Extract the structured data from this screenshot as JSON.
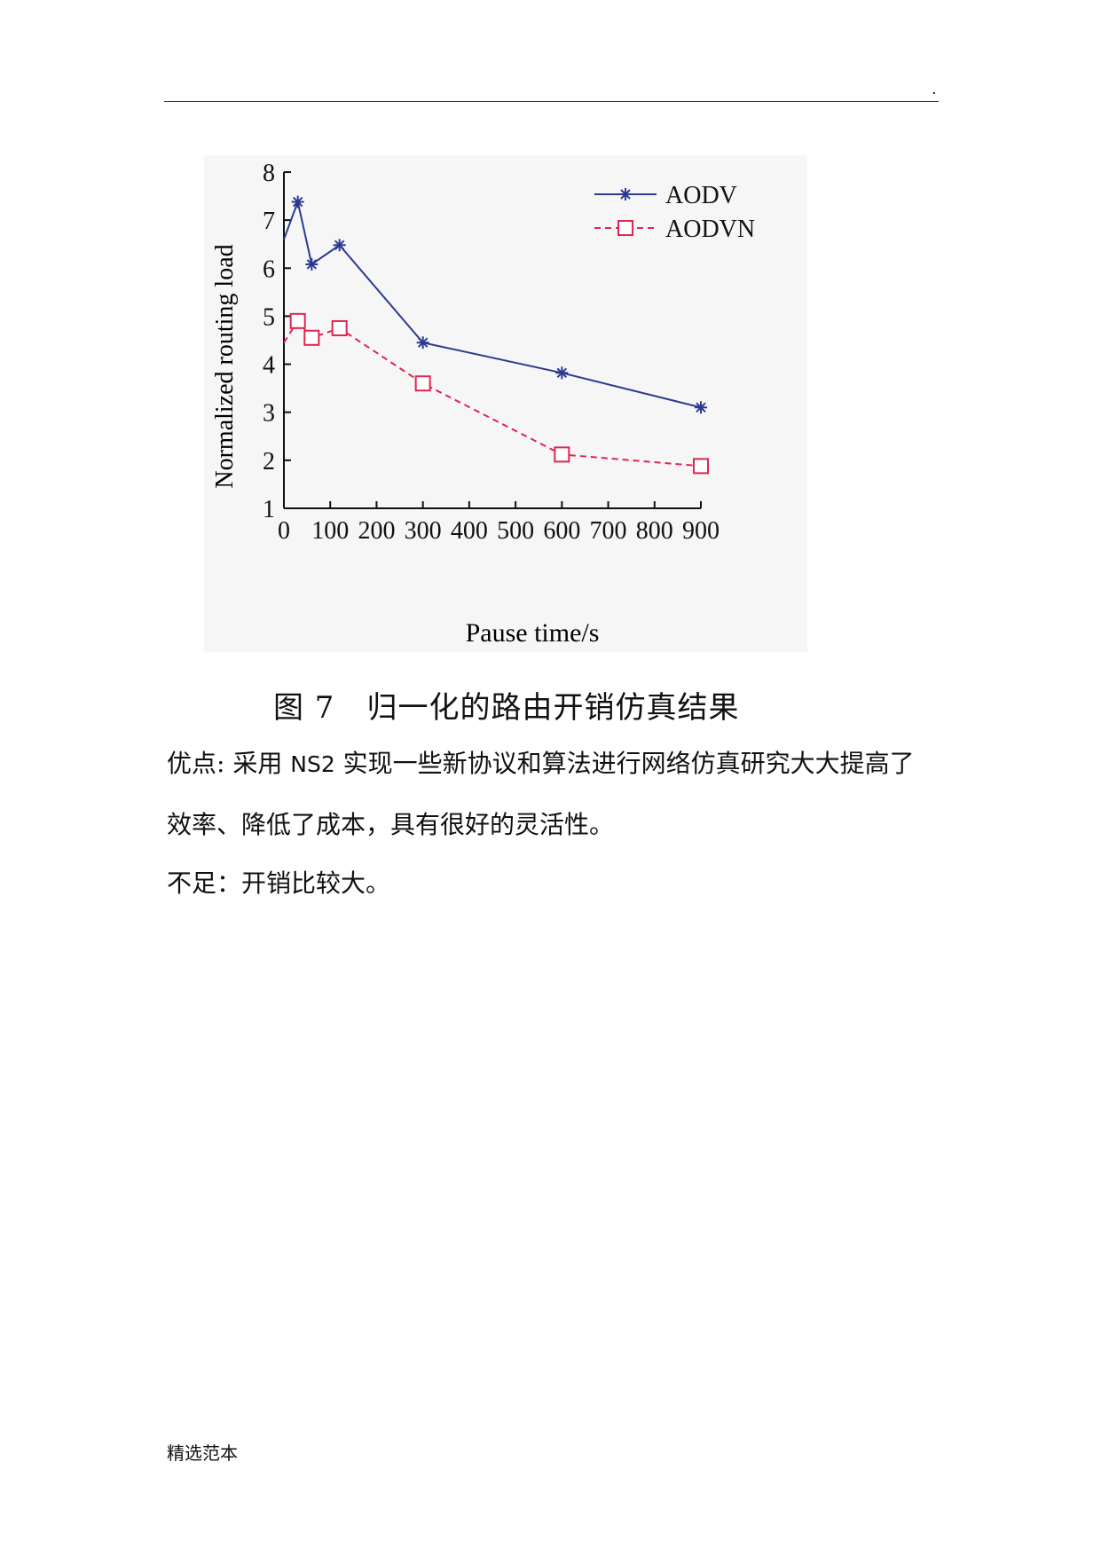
{
  "header": {
    "dot": "."
  },
  "figure": {
    "caption_number": "图 7",
    "caption_text": "归一化的路由开销仿真结果"
  },
  "chart_data": {
    "type": "line",
    "title": "",
    "xlabel": "Pause time/s",
    "ylabel": "Normalized routing load",
    "xlim": [
      0,
      900
    ],
    "ylim": [
      1,
      8
    ],
    "xticks": [
      0,
      100,
      200,
      300,
      400,
      500,
      600,
      700,
      800,
      900
    ],
    "yticks": [
      1,
      2,
      3,
      4,
      5,
      6,
      7,
      8
    ],
    "legend_position": "top-right",
    "grid": false,
    "series": [
      {
        "name": "AODV",
        "color": "#2b3a8f",
        "line_style": "solid",
        "marker": "asterisk",
        "x": [
          0,
          30,
          60,
          120,
          300,
          600,
          900
        ],
        "y": [
          6.6,
          7.38,
          6.08,
          6.48,
          4.45,
          3.82,
          3.1
        ]
      },
      {
        "name": "AODVN",
        "color": "#e0254f",
        "line_style": "dashed",
        "marker": "open-square",
        "x": [
          0,
          30,
          60,
          120,
          300,
          600,
          900
        ],
        "y": [
          4.45,
          4.9,
          4.55,
          4.75,
          3.6,
          2.12,
          1.88
        ]
      }
    ]
  },
  "body": {
    "advantages_label": "优点",
    "advantages_colon": ":",
    "advantages_pre": " 采用 ",
    "advantages_latin": "NS2",
    "advantages_post": " 实现一些新协议和算法进行网络仿真研究大大提高了",
    "advantages_line2": "效率、降低了成本，具有很好的灵活性。",
    "disadvantages": "不足：开销比较大。"
  },
  "footer": {
    "text": "精选范本"
  }
}
